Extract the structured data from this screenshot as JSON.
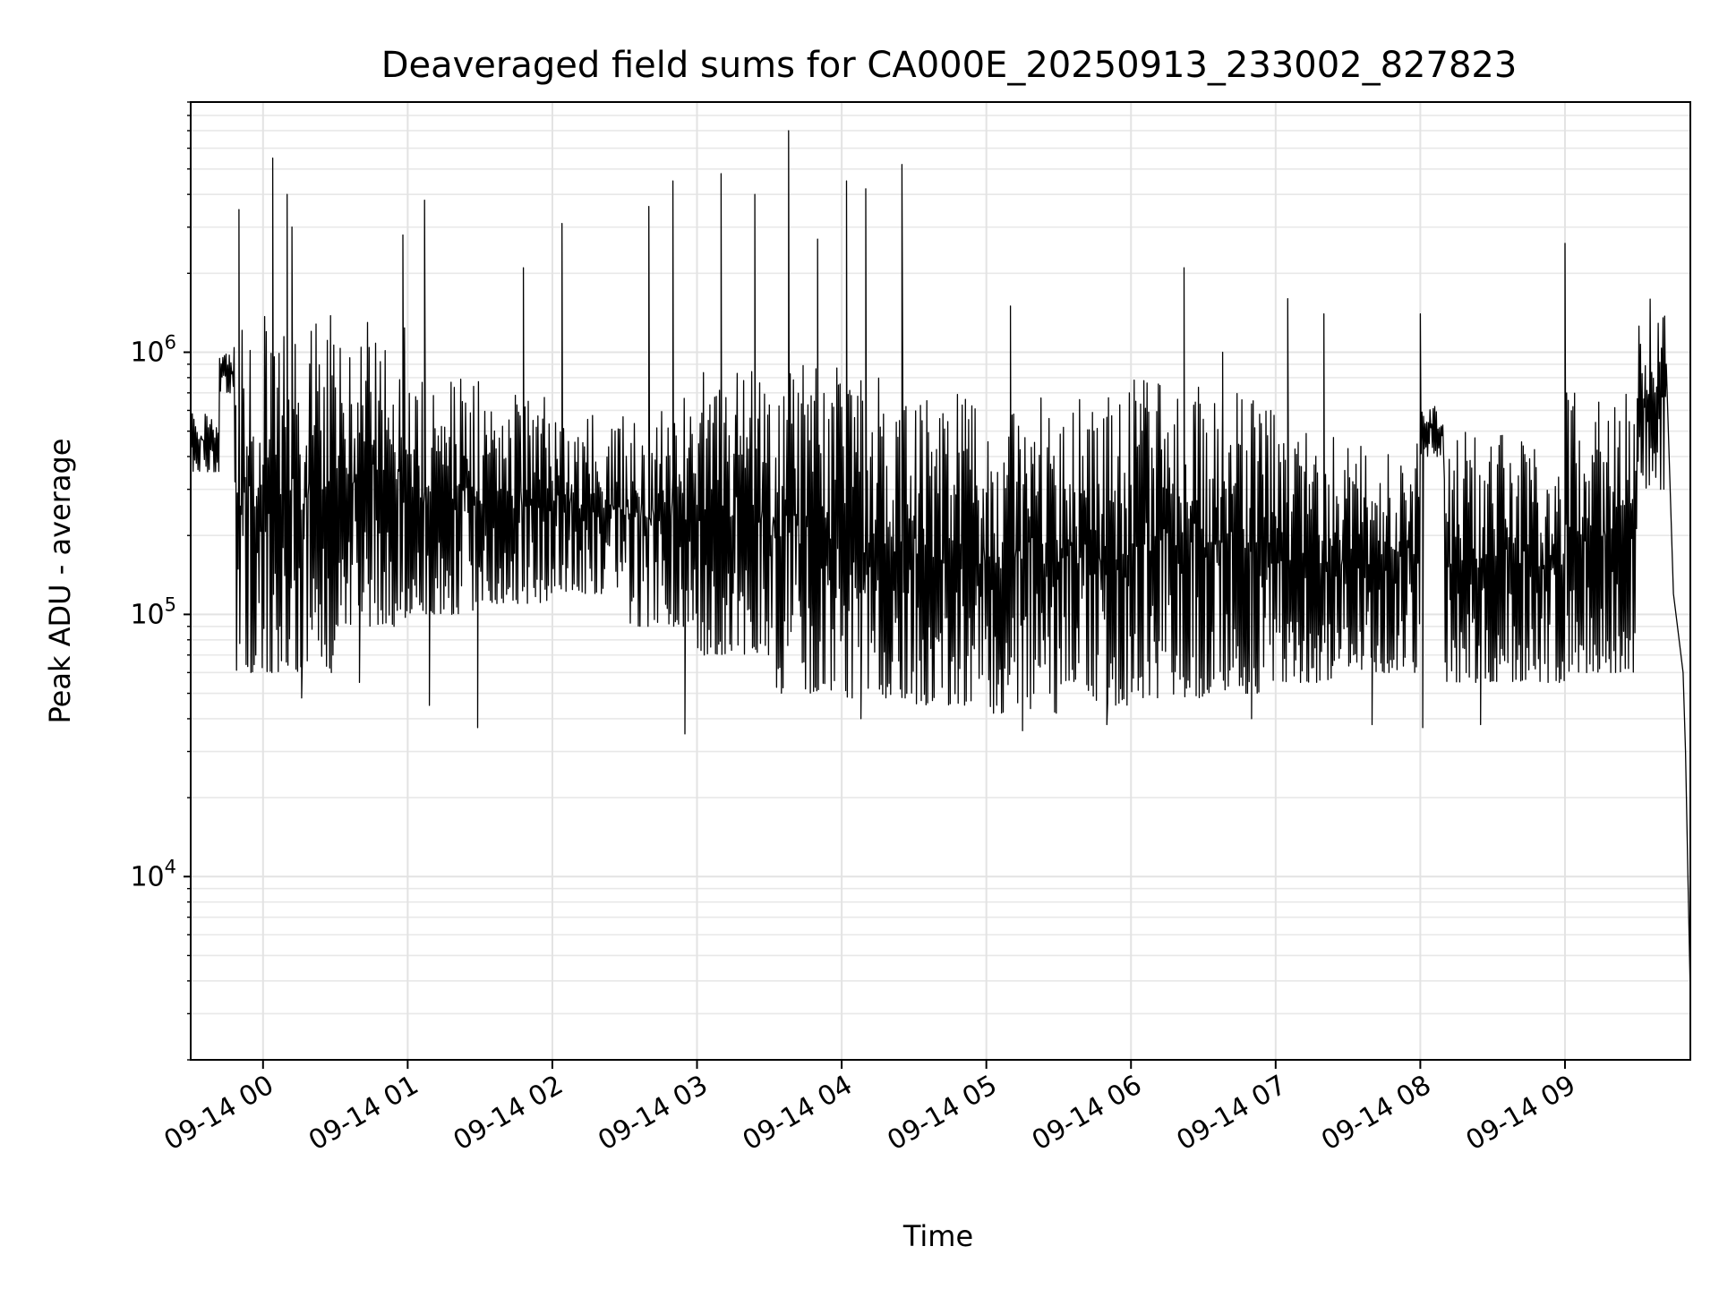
{
  "chart_data": {
    "type": "line",
    "title": "Deaveraged field sums for CA000E_20250913_233002_827823",
    "xlabel": "Time",
    "ylabel": "Peak ADU - average",
    "yscale": "log",
    "ylim": [
      2000,
      9000000
    ],
    "xlim": [
      "2025-09-13 23:30",
      "2025-09-14 09:52"
    ],
    "grid": true,
    "x_tick_labels": [
      "09-14 00",
      "09-14 01",
      "09-14 02",
      "09-14 03",
      "09-14 04",
      "09-14 05",
      "09-14 06",
      "09-14 07",
      "09-14 08",
      "09-14 09"
    ],
    "y_tick_labels": [
      {
        "base": "10",
        "exp": "4"
      },
      {
        "base": "10",
        "exp": "5"
      },
      {
        "base": "10",
        "exp": "6"
      }
    ],
    "series": [
      {
        "color": "#000000",
        "segments": [
          {
            "start": "2025-09-13 23:30",
            "end": "2025-09-13 23:42",
            "low": 350000,
            "high": 620000
          },
          {
            "start": "2025-09-13 23:42",
            "end": "2025-09-13 23:48",
            "low": 700000,
            "high": 1000000
          },
          {
            "start": "2025-09-13 23:48",
            "end": "2025-09-14 00:30",
            "low": 60000,
            "high": 1400000
          },
          {
            "start": "2025-09-14 00:30",
            "end": "2025-09-14 01:00",
            "low": 90000,
            "high": 1300000
          },
          {
            "start": "2025-09-14 01:00",
            "end": "2025-09-14 01:30",
            "low": 100000,
            "high": 800000
          },
          {
            "start": "2025-09-14 01:30",
            "end": "2025-09-14 02:00",
            "low": 110000,
            "high": 700000
          },
          {
            "start": "2025-09-14 02:00",
            "end": "2025-09-14 02:30",
            "low": 120000,
            "high": 600000
          },
          {
            "start": "2025-09-14 02:30",
            "end": "2025-09-14 03:00",
            "low": 90000,
            "high": 700000
          },
          {
            "start": "2025-09-14 03:00",
            "end": "2025-09-14 03:30",
            "low": 70000,
            "high": 900000
          },
          {
            "start": "2025-09-14 03:30",
            "end": "2025-09-14 04:00",
            "low": 50000,
            "high": 900000
          },
          {
            "start": "2025-09-14 04:00",
            "end": "2025-09-14 04:30",
            "low": 48000,
            "high": 800000
          },
          {
            "start": "2025-09-14 04:30",
            "end": "2025-09-14 05:00",
            "low": 45000,
            "high": 700000
          },
          {
            "start": "2025-09-14 05:00",
            "end": "2025-09-14 05:30",
            "low": 42000,
            "high": 700000
          },
          {
            "start": "2025-09-14 05:30",
            "end": "2025-09-14 06:00",
            "low": 45000,
            "high": 700000
          },
          {
            "start": "2025-09-14 06:00",
            "end": "2025-09-14 06:30",
            "low": 48000,
            "high": 800000
          },
          {
            "start": "2025-09-14 06:30",
            "end": "2025-09-14 07:00",
            "low": 50000,
            "high": 700000
          },
          {
            "start": "2025-09-14 07:00",
            "end": "2025-09-14 07:30",
            "low": 55000,
            "high": 500000
          },
          {
            "start": "2025-09-14 07:30",
            "end": "2025-09-14 08:00",
            "low": 60000,
            "high": 450000
          },
          {
            "start": "2025-09-14 08:00",
            "end": "2025-09-14 08:10",
            "low": 400000,
            "high": 650000
          },
          {
            "start": "2025-09-14 08:10",
            "end": "2025-09-14 09:00",
            "low": 55000,
            "high": 500000
          },
          {
            "start": "2025-09-14 09:00",
            "end": "2025-09-14 09:30",
            "low": 60000,
            "high": 700000
          },
          {
            "start": "2025-09-14 09:30",
            "end": "2025-09-14 09:42",
            "low": 300000,
            "high": 1600000
          }
        ],
        "spikes": [
          {
            "t": "2025-09-13 23:50",
            "v": 3500000
          },
          {
            "t": "2025-09-14 00:04",
            "v": 5500000
          },
          {
            "t": "2025-09-14 00:10",
            "v": 4000000
          },
          {
            "t": "2025-09-14 00:12",
            "v": 3000000
          },
          {
            "t": "2025-09-14 00:58",
            "v": 2800000
          },
          {
            "t": "2025-09-14 01:07",
            "v": 3800000
          },
          {
            "t": "2025-09-14 01:48",
            "v": 2100000
          },
          {
            "t": "2025-09-14 02:04",
            "v": 3100000
          },
          {
            "t": "2025-09-14 02:40",
            "v": 3600000
          },
          {
            "t": "2025-09-14 02:50",
            "v": 4500000
          },
          {
            "t": "2025-09-14 03:10",
            "v": 4800000
          },
          {
            "t": "2025-09-14 03:24",
            "v": 4000000
          },
          {
            "t": "2025-09-14 03:38",
            "v": 7000000
          },
          {
            "t": "2025-09-14 03:50",
            "v": 2700000
          },
          {
            "t": "2025-09-14 04:02",
            "v": 4500000
          },
          {
            "t": "2025-09-14 04:10",
            "v": 4200000
          },
          {
            "t": "2025-09-14 04:25",
            "v": 5200000
          },
          {
            "t": "2025-09-14 05:10",
            "v": 1500000
          },
          {
            "t": "2025-09-14 06:22",
            "v": 2100000
          },
          {
            "t": "2025-09-14 06:38",
            "v": 1000000
          },
          {
            "t": "2025-09-14 07:05",
            "v": 1600000
          },
          {
            "t": "2025-09-14 07:20",
            "v": 1400000
          },
          {
            "t": "2025-09-14 08:00",
            "v": 1400000
          },
          {
            "t": "2025-09-14 09:00",
            "v": 2600000
          }
        ],
        "dips": [
          {
            "t": "2025-09-14 00:16",
            "v": 48000
          },
          {
            "t": "2025-09-14 00:40",
            "v": 55000
          },
          {
            "t": "2025-09-14 01:09",
            "v": 45000
          },
          {
            "t": "2025-09-14 01:29",
            "v": 37000
          },
          {
            "t": "2025-09-14 02:55",
            "v": 35000
          },
          {
            "t": "2025-09-14 04:08",
            "v": 40000
          },
          {
            "t": "2025-09-14 05:15",
            "v": 36000
          },
          {
            "t": "2025-09-14 05:50",
            "v": 38000
          },
          {
            "t": "2025-09-14 06:50",
            "v": 40000
          },
          {
            "t": "2025-09-14 07:40",
            "v": 38000
          },
          {
            "t": "2025-09-14 08:01",
            "v": 37000
          },
          {
            "t": "2025-09-14 08:25",
            "v": 38000
          }
        ],
        "tail": [
          {
            "t": "2025-09-14 09:42",
            "v": 900000
          },
          {
            "t": "2025-09-14 09:45",
            "v": 120000
          },
          {
            "t": "2025-09-14 09:47",
            "v": 85000
          },
          {
            "t": "2025-09-14 09:49",
            "v": 60000
          },
          {
            "t": "2025-09-14 09:50",
            "v": 30000
          },
          {
            "t": "2025-09-14 09:51",
            "v": 10000
          },
          {
            "t": "2025-09-14 09:52",
            "v": 3500
          }
        ]
      }
    ]
  }
}
